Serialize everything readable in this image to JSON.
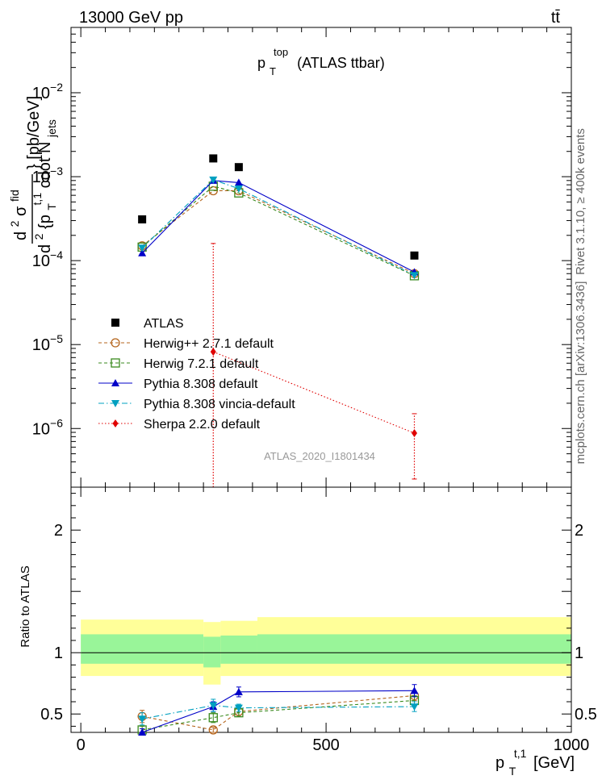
{
  "header": {
    "energy": "13000 GeV pp",
    "process": "tt̄"
  },
  "side_labels": {
    "rivet": "Rivet 3.1.10, ≥ 400k events",
    "mcplots": "mcplots.cern.ch [arXiv:1306.3436]"
  },
  "chart_data": [
    {
      "type": "scatter",
      "panel": "main",
      "title_main": "p",
      "title_sub": "T",
      "title_sup": "top",
      "title_rest": "(ATLAS ttbar)",
      "watermark": "ATLAS_2020_I1801434",
      "y_scale": "log",
      "ylim": [
        2e-07,
        0.06
      ],
      "xlim": [
        -20,
        1000
      ],
      "ylabel": "d²σ^{fid} / d²{p_T^{t,1} cdot N_jets} [pb/GeV]",
      "ylabel_parts": {
        "num_d": "d",
        "num_sup": "2",
        "num_sigma": "σ",
        "num_sup2": "fid",
        "den_d": "d",
        "den_sup": "2",
        "den_brace": "{p",
        "den_sub": "T",
        "den_sup2": "t,1",
        "den_rest": " cdot N",
        "den_sub2": "jets",
        "unit": "} [pb/GeV]"
      },
      "y_ticks": [
        {
          "value": 0.01,
          "base": "10",
          "exp": "−2"
        },
        {
          "value": 0.001,
          "base": "10",
          "exp": "−3"
        },
        {
          "value": 0.0001,
          "base": "10",
          "exp": "−4"
        },
        {
          "value": 1e-05,
          "base": "10",
          "exp": "−5"
        },
        {
          "value": 1e-06,
          "base": "10",
          "exp": "−6"
        }
      ],
      "series": [
        {
          "name": "ATLAS",
          "color": "#000000",
          "marker": "square-filled",
          "line": "none",
          "x": [
            125,
            270,
            322,
            680
          ],
          "y": [
            0.00031,
            0.00165,
            0.0013,
            0.000115
          ]
        },
        {
          "name": "Herwig++ 2.7.1 default",
          "color": "#b5651d",
          "marker": "circle-open",
          "line": "dashed",
          "x": [
            125,
            270,
            322,
            680
          ],
          "y": [
            0.00015,
            0.00068,
            0.00068,
            7e-05
          ]
        },
        {
          "name": "Herwig 7.2.1 default",
          "color": "#3a8a1e",
          "marker": "square-open",
          "line": "dashed",
          "x": [
            125,
            270,
            322,
            680
          ],
          "y": [
            0.000145,
            0.00077,
            0.00064,
            6.6e-05
          ]
        },
        {
          "name": "Pythia 8.308 default",
          "color": "#0000c8",
          "marker": "triangle-up",
          "line": "solid",
          "x": [
            125,
            270,
            322,
            680
          ],
          "y": [
            0.000123,
            0.0009,
            0.00085,
            7.3e-05
          ]
        },
        {
          "name": "Pythia 8.308 vincia-default",
          "color": "#00a0c0",
          "marker": "triangle-down",
          "line": "dashdot",
          "x": [
            125,
            270,
            322,
            680
          ],
          "y": [
            0.000142,
            0.00092,
            0.00072,
            6.7e-05
          ]
        },
        {
          "name": "Sherpa 2.2.0 default",
          "color": "#e00000",
          "marker": "diamond",
          "line": "dotted",
          "x": [
            270,
            680
          ],
          "y": [
            8.2e-06,
            8.8e-07
          ],
          "yerr_low": [
            1e-07,
            2.5e-07
          ],
          "yerr_high": [
            0.00016,
            1.5e-06
          ]
        }
      ]
    },
    {
      "type": "scatter",
      "panel": "ratio",
      "ylabel": "Ratio to ATLAS",
      "xlabel_main": "p",
      "xlabel_sub": "T",
      "xlabel_sup": "t,1",
      "xlabel_unit": "[GeV]",
      "ylim": [
        0.35,
        2.35
      ],
      "xlim": [
        -20,
        1000
      ],
      "y_ticks": [
        {
          "value": 0.5,
          "label": "0.5"
        },
        {
          "value": 1,
          "label": "1"
        },
        {
          "value": 2,
          "label": "2"
        }
      ],
      "x_ticks": [
        {
          "value": 0,
          "label": "0"
        },
        {
          "value": 500,
          "label": "500"
        },
        {
          "value": 1000,
          "label": "1000"
        }
      ],
      "bands": [
        {
          "x0": 0,
          "x1": 250,
          "yellow": [
            0.81,
            1.27
          ],
          "green": [
            0.91,
            1.15
          ]
        },
        {
          "x0": 250,
          "x1": 285,
          "yellow": [
            0.74,
            1.25
          ],
          "green": [
            0.88,
            1.13
          ]
        },
        {
          "x0": 285,
          "x1": 360,
          "yellow": [
            0.81,
            1.26
          ],
          "green": [
            0.91,
            1.14
          ]
        },
        {
          "x0": 360,
          "x1": 1000,
          "yellow": [
            0.81,
            1.29
          ],
          "green": [
            0.91,
            1.15
          ]
        }
      ],
      "series": [
        {
          "name": "Herwig++ 2.7.1 default",
          "color": "#b5651d",
          "marker": "circle-open",
          "line": "dashed",
          "x": [
            125,
            270,
            322,
            680
          ],
          "y": [
            0.48,
            0.37,
            0.52,
            0.65
          ],
          "err": [
            0.05,
            0.02,
            0.03,
            0.04
          ]
        },
        {
          "name": "Herwig 7.2.1 default",
          "color": "#3a8a1e",
          "marker": "square-open",
          "line": "dashed",
          "x": [
            125,
            270,
            322,
            680
          ],
          "y": [
            0.37,
            0.47,
            0.51,
            0.61
          ],
          "err": [
            0.03,
            0.04,
            0.03,
            0.04
          ]
        },
        {
          "name": "Pythia 8.308 default",
          "color": "#0000c8",
          "marker": "triangle-up",
          "line": "solid",
          "x": [
            125,
            270,
            322,
            680
          ],
          "y": [
            0.35,
            0.56,
            0.68,
            0.69
          ],
          "err": [
            0.03,
            0.04,
            0.04,
            0.05
          ]
        },
        {
          "name": "Pythia 8.308 vincia-default",
          "color": "#00a0c0",
          "marker": "triangle-down",
          "line": "dashdot",
          "x": [
            125,
            270,
            322,
            680
          ],
          "y": [
            0.46,
            0.57,
            0.55,
            0.56
          ],
          "err": [
            0.05,
            0.05,
            0.03,
            0.04
          ]
        }
      ]
    }
  ]
}
